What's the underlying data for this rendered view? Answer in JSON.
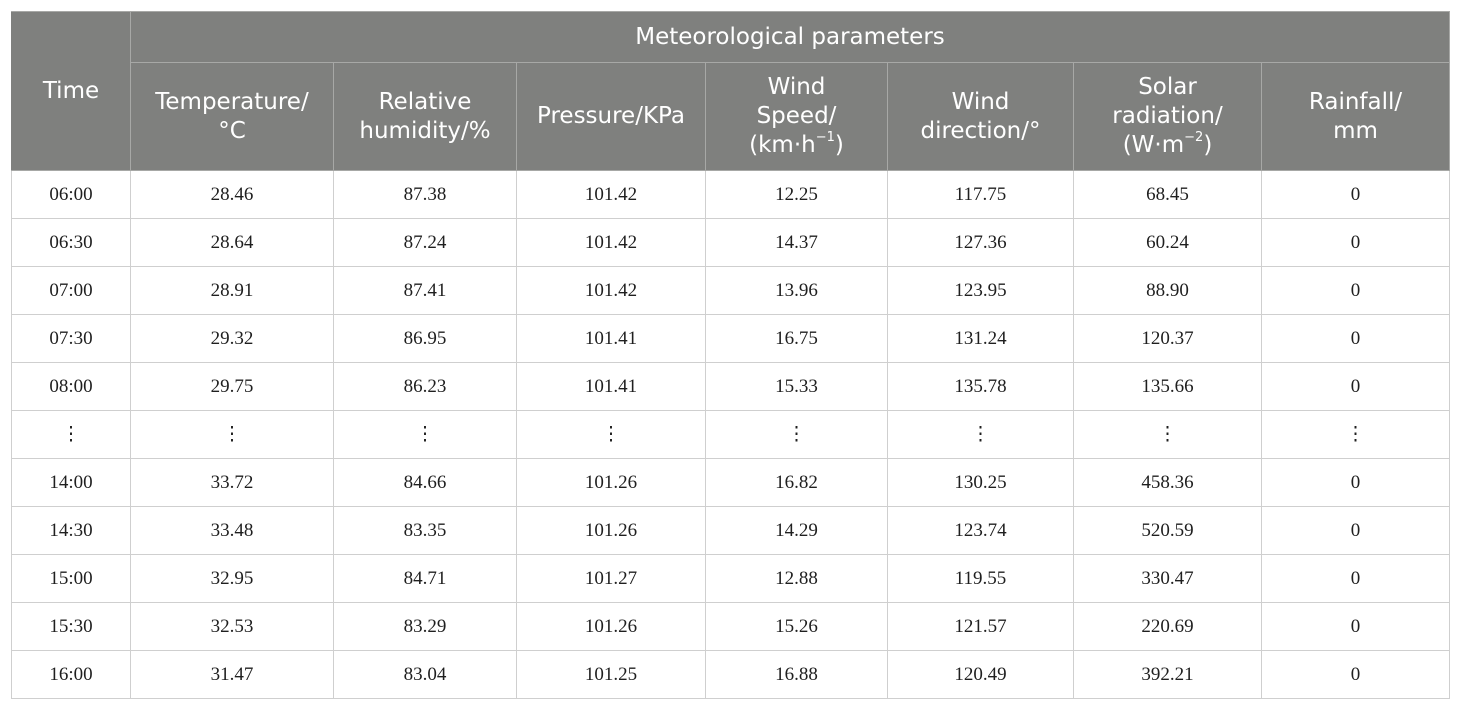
{
  "table": {
    "group_header": "Meteorological parameters",
    "columns": {
      "time": "Time",
      "temperature": "Temperature/\n°C",
      "humidity": "Relative\nhumidity/%",
      "pressure": "Pressure/KPa",
      "wind_speed": "Wind\nSpeed/\n(km·h−1)",
      "wind_direction": "Wind\ndirection/°",
      "solar_radiation": "Solar\nradiation/\n(W·m−2)",
      "rainfall": "Rainfall/\nmm"
    },
    "rows": [
      [
        "06:00",
        "28.46",
        "87.38",
        "101.42",
        "12.25",
        "117.75",
        "68.45",
        "0"
      ],
      [
        "06:30",
        "28.64",
        "87.24",
        "101.42",
        "14.37",
        "127.36",
        "60.24",
        "0"
      ],
      [
        "07:00",
        "28.91",
        "87.41",
        "101.42",
        "13.96",
        "123.95",
        "88.90",
        "0"
      ],
      [
        "07:30",
        "29.32",
        "86.95",
        "101.41",
        "16.75",
        "131.24",
        "120.37",
        "0"
      ],
      [
        "08:00",
        "29.75",
        "86.23",
        "101.41",
        "15.33",
        "135.78",
        "135.66",
        "0"
      ],
      [
        "⋮",
        "⋮",
        "⋮",
        "⋮",
        "⋮",
        "⋮",
        "⋮",
        "⋮"
      ],
      [
        "14:00",
        "33.72",
        "84.66",
        "101.26",
        "16.82",
        "130.25",
        "458.36",
        "0"
      ],
      [
        "14:30",
        "33.48",
        "83.35",
        "101.26",
        "14.29",
        "123.74",
        "520.59",
        "0"
      ],
      [
        "15:00",
        "32.95",
        "84.71",
        "101.27",
        "12.88",
        "119.55",
        "330.47",
        "0"
      ],
      [
        "15:30",
        "32.53",
        "83.29",
        "101.26",
        "15.26",
        "121.57",
        "220.69",
        "0"
      ],
      [
        "16:00",
        "31.47",
        "83.04",
        "101.25",
        "16.88",
        "120.49",
        "392.21",
        "0"
      ]
    ]
  }
}
